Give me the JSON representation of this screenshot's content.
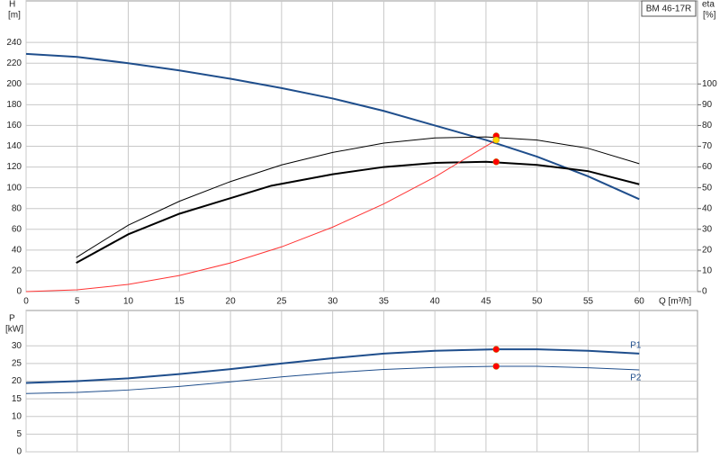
{
  "chart_data": [
    {
      "type": "line",
      "title": "BM 46-17R",
      "ylabel": "H",
      "yunit": "[m]",
      "y2label": "eta",
      "y2unit": "[%]",
      "xlabel": "Q [m³/h]",
      "xlim": [
        0,
        65.7
      ],
      "xticks": [
        0,
        5,
        10,
        15,
        20,
        25,
        30,
        35,
        40,
        45,
        50,
        55,
        60
      ],
      "ylim": [
        0,
        280
      ],
      "yticks": [
        0,
        20,
        40,
        60,
        80,
        100,
        120,
        140,
        160,
        180,
        200,
        220,
        240
      ],
      "y2lim": [
        0,
        140
      ],
      "y2ticks": [
        0,
        10,
        20,
        30,
        40,
        50,
        60,
        70,
        80,
        90,
        100
      ],
      "grid": true,
      "series": [
        {
          "color": "#1f4e8c",
          "width": 2,
          "x": [
            0,
            5,
            10,
            15,
            20,
            25,
            30,
            35,
            40,
            45,
            50,
            55,
            60
          ],
          "values": [
            229,
            226,
            220,
            213,
            205,
            196,
            186,
            174,
            160,
            146,
            130,
            111,
            89
          ]
        },
        {
          "color": "#000000",
          "width": 1,
          "axis": "y2",
          "x": [
            4.9,
            10,
            15,
            20,
            25,
            30,
            35,
            40,
            45,
            50,
            55,
            60
          ],
          "values": [
            16.4,
            32,
            43.5,
            53,
            61,
            67,
            71.5,
            74,
            74.5,
            73,
            69,
            61.6
          ]
        },
        {
          "color": "#000000",
          "width": 2,
          "axis": "y2",
          "x": [
            4.9,
            10,
            15,
            20,
            24,
            30,
            35,
            40,
            45,
            50,
            55,
            60
          ],
          "values": [
            13.8,
            27.6,
            37.5,
            45,
            51,
            56.5,
            60,
            62,
            62.5,
            61,
            58,
            51.7
          ]
        },
        {
          "color": "#ff3333",
          "width": 1,
          "x": [
            0,
            5,
            10,
            15,
            20,
            25,
            30,
            35,
            40,
            46
          ],
          "values": [
            0,
            1.7,
            6.9,
            15.5,
            27.6,
            43.1,
            62.1,
            84.5,
            110.4,
            146
          ]
        }
      ],
      "markers": [
        {
          "x": 46,
          "value": 75,
          "axis": "y2",
          "color": "#ff0000"
        },
        {
          "x": 46,
          "value": 62.5,
          "axis": "y2",
          "color": "#ff0000"
        },
        {
          "x": 46,
          "value": 146,
          "color": "#ffd700"
        }
      ]
    },
    {
      "type": "line",
      "ylabel": "P",
      "yunit": "[kW]",
      "xlim": [
        0,
        65.7
      ],
      "xticks": [
        0,
        5,
        10,
        15,
        20,
        25,
        30,
        35,
        40,
        45,
        50,
        55,
        60
      ],
      "xtick_labels": false,
      "ylim": [
        0,
        40
      ],
      "yticks": [
        0,
        5,
        10,
        15,
        20,
        25,
        30
      ],
      "grid": true,
      "series": [
        {
          "name": "P1",
          "color": "#1f4e8c",
          "width": 2,
          "x": [
            0,
            5,
            10,
            15,
            20,
            25,
            30,
            35,
            40,
            46,
            50,
            55,
            60
          ],
          "values": [
            19.5,
            20,
            20.8,
            22,
            23.4,
            25,
            26.5,
            27.8,
            28.6,
            29,
            29,
            28.6,
            27.8
          ]
        },
        {
          "name": "P2",
          "color": "#1f4e8c",
          "width": 1,
          "x": [
            0,
            5,
            10,
            15,
            20,
            25,
            30,
            35,
            40,
            46,
            50,
            55,
            60
          ],
          "values": [
            16.5,
            16.8,
            17.5,
            18.5,
            19.8,
            21.2,
            22.4,
            23.3,
            23.9,
            24.2,
            24.2,
            23.8,
            23.2
          ]
        }
      ],
      "markers": [
        {
          "x": 46,
          "value": 29,
          "color": "#ff0000"
        },
        {
          "x": 46,
          "value": 24.2,
          "color": "#ff0000"
        }
      ]
    }
  ]
}
